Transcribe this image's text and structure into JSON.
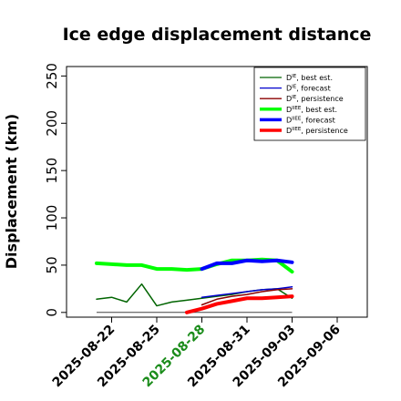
{
  "chart_data": {
    "type": "line",
    "title": "Ice edge displacement distance",
    "ylabel": "Displacement (km)",
    "xlabel": "",
    "ylim": [
      -5,
      260
    ],
    "yticks": [
      0,
      50,
      100,
      150,
      200,
      250
    ],
    "xlim": [
      "2025-08-19",
      "2025-09-08"
    ],
    "xticks": [
      {
        "date": "2025-08-22",
        "label": "2025-08-22",
        "color": "#000000"
      },
      {
        "date": "2025-08-25",
        "label": "2025-08-25",
        "color": "#000000"
      },
      {
        "date": "2025-08-28",
        "label": "2025-08-28",
        "color": "#1a8c1a"
      },
      {
        "date": "2025-08-31",
        "label": "2025-08-31",
        "color": "#000000"
      },
      {
        "date": "2025-09-03",
        "label": "2025-09-03",
        "color": "#000000"
      },
      {
        "date": "2025-09-06",
        "label": "2025-09-06",
        "color": "#000000"
      }
    ],
    "baseline": {
      "y": 0,
      "x": [
        "2025-08-21",
        "2025-09-03"
      ],
      "color": "#444444"
    },
    "legend_position": "top-right",
    "series": [
      {
        "name": "D^IE, best est.",
        "sup": "IE",
        "suffix": ", best est.",
        "color": "#006400",
        "width": 1.5,
        "x": [
          "2025-08-21",
          "2025-08-22",
          "2025-08-23",
          "2025-08-24",
          "2025-08-25",
          "2025-08-26",
          "2025-08-27",
          "2025-08-28",
          "2025-08-29",
          "2025-08-30",
          "2025-08-31",
          "2025-09-01",
          "2025-09-02",
          "2025-09-03"
        ],
        "y": [
          14,
          16,
          11,
          30,
          7,
          11,
          13,
          15,
          17,
          19,
          22,
          24,
          25,
          15
        ]
      },
      {
        "name": "D^IE, forecast",
        "sup": "IE",
        "suffix": ", forecast",
        "color": "#0000cd",
        "width": 1.5,
        "x": [
          "2025-08-28",
          "2025-08-29",
          "2025-08-30",
          "2025-08-31",
          "2025-09-01",
          "2025-09-02",
          "2025-09-03"
        ],
        "y": [
          16,
          18,
          20,
          22,
          24,
          25,
          27
        ]
      },
      {
        "name": "D^IE, persistence",
        "sup": "IE",
        "suffix": ", persistence",
        "color": "#8b0000",
        "width": 1.5,
        "x": [
          "2025-08-28",
          "2025-08-29",
          "2025-08-30",
          "2025-08-31",
          "2025-09-01",
          "2025-09-02",
          "2025-09-03"
        ],
        "y": [
          8,
          14,
          17,
          19,
          22,
          24,
          25
        ]
      },
      {
        "name": "D^IIEE, best est.",
        "sup": "IIEE",
        "suffix": ", best est.",
        "color": "#00ff00",
        "width": 4,
        "x": [
          "2025-08-21",
          "2025-08-22",
          "2025-08-23",
          "2025-08-24",
          "2025-08-25",
          "2025-08-26",
          "2025-08-27",
          "2025-08-28",
          "2025-08-29",
          "2025-08-30",
          "2025-08-31",
          "2025-09-01",
          "2025-09-02",
          "2025-09-03"
        ],
        "y": [
          52,
          51,
          50,
          50,
          46,
          46,
          45,
          46,
          51,
          55,
          55,
          56,
          55,
          43
        ]
      },
      {
        "name": "D^IIEE, forecast",
        "sup": "IIEE",
        "suffix": ", forecast",
        "color": "#0000ff",
        "width": 4,
        "x": [
          "2025-08-28",
          "2025-08-29",
          "2025-08-30",
          "2025-08-31",
          "2025-09-01",
          "2025-09-02",
          "2025-09-03"
        ],
        "y": [
          46,
          52,
          52,
          55,
          54,
          55,
          53
        ]
      },
      {
        "name": "D^IIEE, persistence",
        "sup": "IIEE",
        "suffix": ", persistence",
        "color": "#ff0000",
        "width": 4,
        "x": [
          "2025-08-27",
          "2025-08-28",
          "2025-08-29",
          "2025-08-30",
          "2025-08-31",
          "2025-09-01",
          "2025-09-02",
          "2025-09-03"
        ],
        "y": [
          0,
          4,
          9,
          12,
          15,
          15,
          16,
          17
        ]
      }
    ]
  }
}
